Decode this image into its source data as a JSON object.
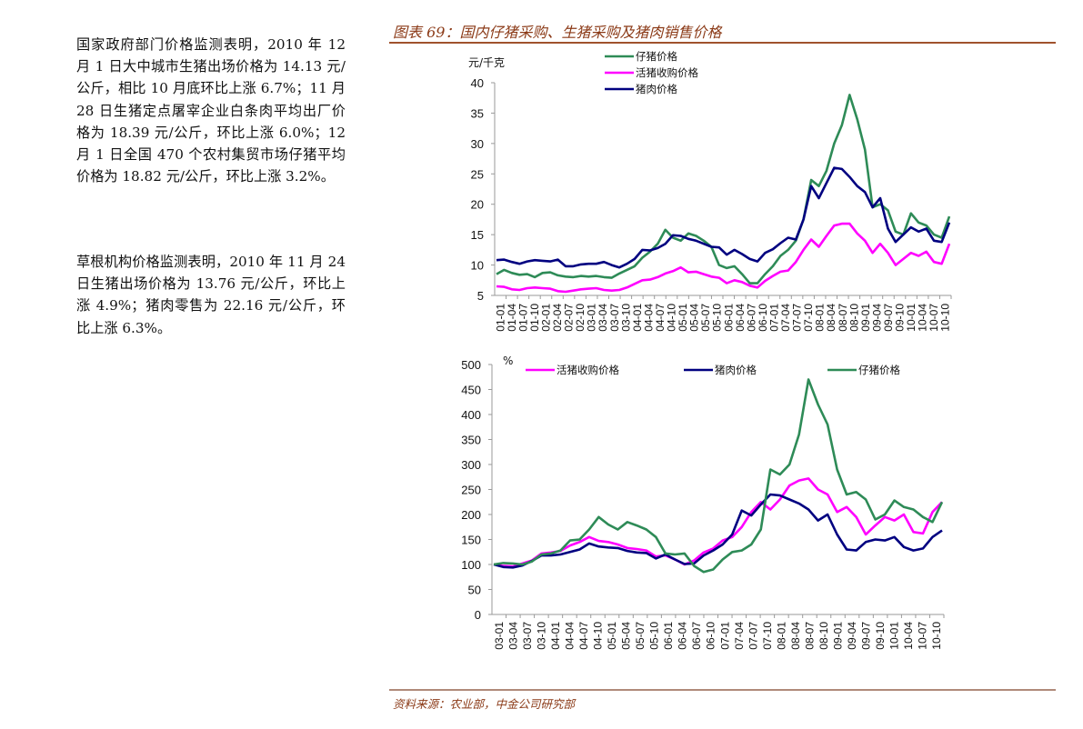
{
  "text_column": {
    "paragraph1": "国家政府部门价格监测表明，2010 年 12 月 1 日大中城市生猪出场价格为 14.13 元/公斤，相比 10 月底环比上涨 6.7%；11 月 28 日生猪定点屠宰企业白条肉平均出厂价格为 18.39 元/公斤，环比上涨 6.0%；12 月 1 日全国 470 个农村集贸市场仔猪平均价格为 18.82 元/公斤，环比上涨 3.2%。",
    "paragraph2": "草根机构价格监测表明，2010 年 11 月 24 日生猪出场价格为 13.76 元/公斤，环比上涨 4.9%；猪肉零售为 22.16 元/公斤，环比上涨 6.3%。"
  },
  "figure": {
    "title": "图表 69：国内仔猪采购、生猪采购及猪肉销售价格",
    "source": "资料来源：农业部，中金公司研究部",
    "accent_color": "#8b3a17"
  },
  "colors": {
    "piglet": "#2e8b57",
    "live_hog": "#ff00ff",
    "pork": "#000080",
    "axis": "#9a9a9a"
  },
  "chart_data": [
    {
      "type": "line",
      "title": "",
      "ylabel": "元/千克",
      "xlabel": "",
      "ylim": [
        5,
        40
      ],
      "yticks": [
        5,
        10,
        15,
        20,
        25,
        30,
        35,
        40
      ],
      "grid": false,
      "legend_position": "top-center",
      "x_tick_labels": [
        "01-01",
        "01-04",
        "01-07",
        "01-10",
        "02-01",
        "02-04",
        "02-07",
        "02-10",
        "03-01",
        "03-04",
        "03-07",
        "03-10",
        "04-01",
        "04-04",
        "04-07",
        "04-10",
        "05-01",
        "05-04",
        "05-07",
        "05-10",
        "06-01",
        "06-04",
        "06-07",
        "06-10",
        "07-01",
        "07-04",
        "07-07",
        "07-10",
        "08-01",
        "08-04",
        "08-07",
        "08-10",
        "09-01",
        "09-04",
        "09-07",
        "09-10",
        "10-01",
        "10-04",
        "10-07",
        "10-10"
      ],
      "x_note": "bimonthly samples from 2001-01 to 2010-11",
      "series": [
        {
          "name": "仔猪价格",
          "key": "piglet",
          "values": [
            8.5,
            9.2,
            8.7,
            8.4,
            8.5,
            8.0,
            8.7,
            8.8,
            8.3,
            8.1,
            8.0,
            8.2,
            8.1,
            8.2,
            8.0,
            7.9,
            8.6,
            9.2,
            9.8,
            11.2,
            12.2,
            13.5,
            15.8,
            14.5,
            14.0,
            15.2,
            14.8,
            14.0,
            13.0,
            10.0,
            9.5,
            9.8,
            8.5,
            7.0,
            7.0,
            8.5,
            9.8,
            11.5,
            12.5,
            14.0,
            17.5,
            24.0,
            23.0,
            25.5,
            30.0,
            33.0,
            38.0,
            34.0,
            29.0,
            19.5,
            20.0,
            19.0,
            15.5,
            15.0,
            18.5,
            17.0,
            16.5,
            15.0,
            14.5,
            18.0
          ]
        },
        {
          "name": "活猪收购价格",
          "key": "live_hog",
          "values": [
            6.5,
            6.4,
            6.0,
            5.9,
            6.2,
            6.3,
            6.2,
            6.1,
            5.7,
            5.6,
            5.8,
            6.0,
            6.1,
            6.2,
            5.9,
            5.8,
            5.9,
            6.3,
            6.9,
            7.5,
            7.6,
            8.0,
            8.6,
            9.0,
            9.6,
            8.8,
            8.9,
            8.5,
            8.1,
            7.9,
            7.0,
            7.5,
            7.2,
            6.6,
            6.3,
            7.4,
            8.2,
            8.9,
            9.1,
            10.5,
            12.5,
            14.2,
            13.0,
            14.8,
            16.5,
            16.8,
            16.8,
            15.2,
            14.0,
            12.0,
            13.5,
            12.0,
            10.0,
            11.0,
            12.0,
            11.5,
            12.2,
            10.5,
            10.2,
            13.5
          ]
        },
        {
          "name": "猪肉价格",
          "key": "pork",
          "values": [
            10.8,
            10.9,
            10.5,
            10.2,
            10.6,
            10.8,
            10.7,
            10.6,
            10.9,
            9.8,
            9.8,
            10.1,
            10.2,
            10.2,
            10.5,
            10.0,
            9.6,
            10.2,
            11.0,
            12.5,
            12.4,
            12.8,
            13.5,
            14.9,
            14.8,
            14.3,
            14.0,
            13.5,
            13.0,
            12.9,
            11.7,
            12.5,
            11.8,
            11.0,
            10.6,
            12.0,
            12.6,
            13.6,
            14.5,
            14.2,
            17.5,
            23.0,
            21.0,
            23.5,
            26.0,
            25.8,
            24.5,
            23.0,
            22.0,
            19.5,
            21.0,
            16.0,
            13.8,
            15.0,
            16.2,
            15.5,
            16.0,
            14.0,
            13.8,
            17.0
          ]
        }
      ]
    },
    {
      "type": "line",
      "title": "",
      "ylabel": "%",
      "xlabel": "",
      "ylim": [
        0,
        500
      ],
      "yticks": [
        0,
        50,
        100,
        150,
        200,
        250,
        300,
        350,
        400,
        450,
        500
      ],
      "grid": false,
      "legend_position": "top",
      "x_tick_labels": [
        "03-01",
        "03-04",
        "03-07",
        "03-10",
        "04-01",
        "04-04",
        "04-07",
        "04-10",
        "05-01",
        "05-04",
        "05-07",
        "05-10",
        "06-01",
        "06-04",
        "06-07",
        "06-10",
        "07-01",
        "07-04",
        "07-07",
        "07-10",
        "08-01",
        "08-04",
        "08-07",
        "08-10",
        "09-01",
        "09-04",
        "09-07",
        "09-10",
        "10-01",
        "10-04",
        "10-07",
        "10-10"
      ],
      "x_note": "bimonthly samples from 2003-01 to 2010-11, index 2003-01 = 100",
      "series": [
        {
          "name": "活猪收购价格",
          "key": "live_hog",
          "values": [
            100,
            97,
            96,
            102,
            108,
            122,
            124,
            127,
            138,
            145,
            155,
            147,
            145,
            140,
            133,
            131,
            128,
            116,
            118,
            110,
            100,
            108,
            124,
            132,
            148,
            155,
            175,
            205,
            225,
            210,
            230,
            258,
            268,
            272,
            250,
            240,
            205,
            215,
            195,
            160,
            178,
            195,
            188,
            200,
            165,
            162,
            205,
            225
          ]
        },
        {
          "name": "猪肉价格",
          "key": "pork",
          "values": [
            100,
            95,
            94,
            98,
            107,
            118,
            118,
            120,
            125,
            130,
            142,
            136,
            134,
            133,
            127,
            124,
            123,
            112,
            120,
            110,
            101,
            102,
            118,
            128,
            140,
            160,
            208,
            198,
            220,
            240,
            238,
            230,
            222,
            210,
            188,
            200,
            160,
            130,
            128,
            145,
            150,
            148,
            155,
            135,
            128,
            132,
            155,
            168
          ]
        },
        {
          "name": "仔猪价格",
          "key": "piglet",
          "values": [
            100,
            103,
            102,
            100,
            106,
            120,
            122,
            128,
            148,
            150,
            170,
            195,
            180,
            170,
            185,
            178,
            170,
            155,
            122,
            120,
            122,
            97,
            85,
            90,
            110,
            125,
            128,
            140,
            170,
            290,
            280,
            300,
            360,
            470,
            420,
            380,
            290,
            240,
            245,
            230,
            190,
            200,
            228,
            215,
            210,
            195,
            185,
            225
          ]
        }
      ]
    }
  ]
}
